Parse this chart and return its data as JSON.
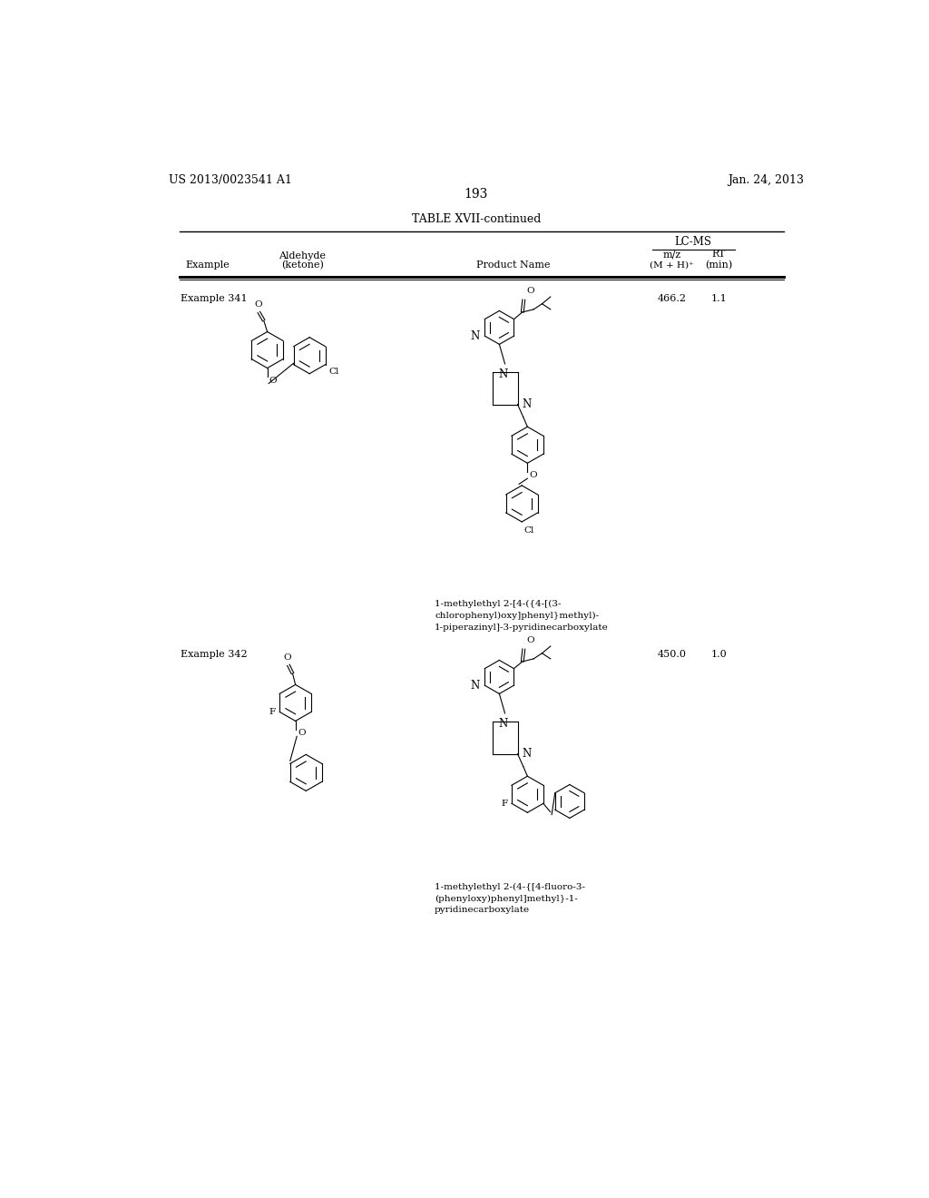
{
  "page_number": "193",
  "patent_number": "US 2013/0023541 A1",
  "patent_date": "Jan. 24, 2013",
  "table_title": "TABLE XVII-continued",
  "background_color": "#ffffff",
  "text_color": "#000000",
  "ex341_label": "Example 341",
  "ex341_mz": "466.2",
  "ex341_rt": "1.1",
  "ex341_name": "1-methylethyl 2-[4-({4-[(3-\nchlorophenyl)oxy]phenyl}methyl)-\n1-piperazinyl]-3-pyridinecarboxylate",
  "ex342_label": "Example 342",
  "ex342_mz": "450.0",
  "ex342_rt": "1.0",
  "ex342_name": "1-methylethyl 2-(4-{[4-fluoro-3-\n(phenyloxy)phenyl]methyl}-1-\npyridinecarboxylate"
}
